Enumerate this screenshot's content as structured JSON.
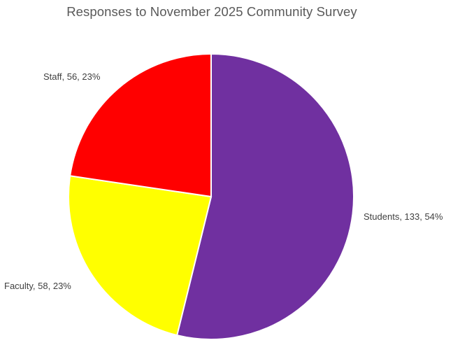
{
  "chart_data": {
    "type": "pie",
    "title": "Responses to November 2025 Community Survey",
    "categories": [
      "Students",
      "Faculty",
      "Staff"
    ],
    "values": [
      133,
      58,
      56
    ],
    "percent_labels": [
      "54%",
      "23%",
      "23%"
    ],
    "data_labels": [
      "Students, 133, 54%",
      "Faculty, 58, 23%",
      "Staff, 56, 23%"
    ],
    "colors": [
      "#7030A0",
      "#FFFF00",
      "#FF0000"
    ],
    "start_angle_deg": 0,
    "direction": "clockwise",
    "legend": "none"
  }
}
